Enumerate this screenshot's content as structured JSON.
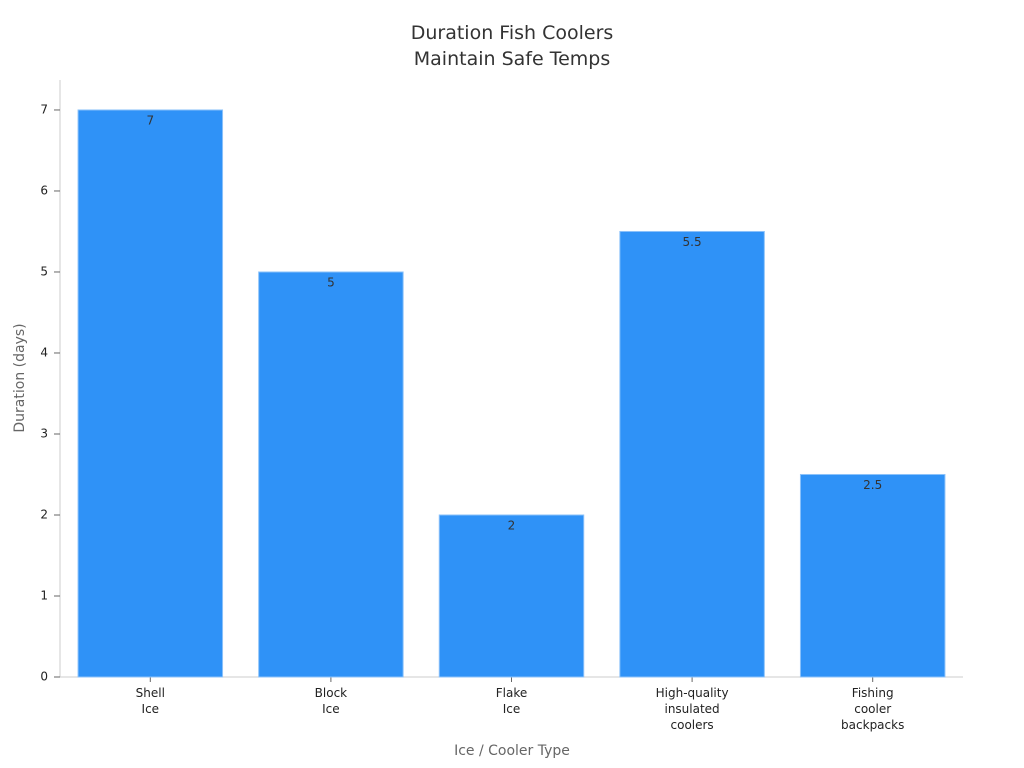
{
  "chart_data": {
    "type": "bar",
    "title": "Duration Fish Coolers\nMaintain Safe Temps",
    "x_label": "Ice / Cooler Type",
    "y_label": "Duration (days)",
    "categories": [
      "Shell Ice",
      "Block Ice",
      "Flake Ice",
      "High-quality insulated coolers",
      "Fishing cooler backpacks"
    ],
    "values": [
      7,
      5,
      2,
      5.5,
      2.5
    ],
    "color": "#2f92f7",
    "ylim": [
      0,
      7.37
    ],
    "yticks": [
      0,
      1,
      2,
      3,
      4,
      5,
      6,
      7
    ],
    "grid": false
  }
}
